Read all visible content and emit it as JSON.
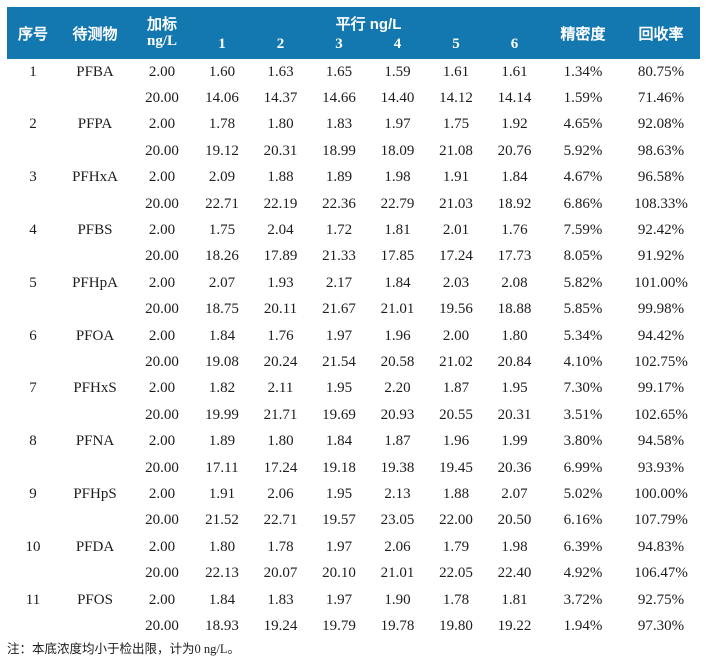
{
  "colors": {
    "header_bg": "#1377b0",
    "header_text": "#ffffff",
    "body_text": "#1c1c1c"
  },
  "table": {
    "headers": {
      "no": "序号",
      "analyte": "待测物",
      "spike_line1": "加标",
      "spike_line2": "ng/L",
      "parallel": "平行  ng/L",
      "replicates": [
        "1",
        "2",
        "3",
        "4",
        "5",
        "6"
      ],
      "precision": "精密度",
      "recovery": "回收率"
    },
    "rows": [
      {
        "no": "1",
        "analyte": "PFBA",
        "spike": "2.00",
        "values": [
          "1.60",
          "1.63",
          "1.65",
          "1.59",
          "1.61",
          "1.61"
        ],
        "precision": "1.34%",
        "recovery": "80.75%"
      },
      {
        "no": "",
        "analyte": "",
        "spike": "20.00",
        "values": [
          "14.06",
          "14.37",
          "14.66",
          "14.40",
          "14.12",
          "14.14"
        ],
        "precision": "1.59%",
        "recovery": "71.46%"
      },
      {
        "no": "2",
        "analyte": "PFPA",
        "spike": "2.00",
        "values": [
          "1.78",
          "1.80",
          "1.83",
          "1.97",
          "1.75",
          "1.92"
        ],
        "precision": "4.65%",
        "recovery": "92.08%"
      },
      {
        "no": "",
        "analyte": "",
        "spike": "20.00",
        "values": [
          "19.12",
          "20.31",
          "18.99",
          "18.09",
          "21.08",
          "20.76"
        ],
        "precision": "5.92%",
        "recovery": "98.63%"
      },
      {
        "no": "3",
        "analyte": "PFHxA",
        "spike": "2.00",
        "values": [
          "2.09",
          "1.88",
          "1.89",
          "1.98",
          "1.91",
          "1.84"
        ],
        "precision": "4.67%",
        "recovery": "96.58%"
      },
      {
        "no": "",
        "analyte": "",
        "spike": "20.00",
        "values": [
          "22.71",
          "22.19",
          "22.36",
          "22.79",
          "21.03",
          "18.92"
        ],
        "precision": "6.86%",
        "recovery": "108.33%"
      },
      {
        "no": "4",
        "analyte": "PFBS",
        "spike": "2.00",
        "values": [
          "1.75",
          "2.04",
          "1.72",
          "1.81",
          "2.01",
          "1.76"
        ],
        "precision": "7.59%",
        "recovery": "92.42%"
      },
      {
        "no": "",
        "analyte": "",
        "spike": "20.00",
        "values": [
          "18.26",
          "17.89",
          "21.33",
          "17.85",
          "17.24",
          "17.73"
        ],
        "precision": "8.05%",
        "recovery": "91.92%"
      },
      {
        "no": "5",
        "analyte": "PFHpA",
        "spike": "2.00",
        "values": [
          "2.07",
          "1.93",
          "2.17",
          "1.84",
          "2.03",
          "2.08"
        ],
        "precision": "5.82%",
        "recovery": "101.00%"
      },
      {
        "no": "",
        "analyte": "",
        "spike": "20.00",
        "values": [
          "18.75",
          "20.11",
          "21.67",
          "21.01",
          "19.56",
          "18.88"
        ],
        "precision": "5.85%",
        "recovery": "99.98%"
      },
      {
        "no": "6",
        "analyte": "PFOA",
        "spike": "2.00",
        "values": [
          "1.84",
          "1.76",
          "1.97",
          "1.96",
          "2.00",
          "1.80"
        ],
        "precision": "5.34%",
        "recovery": "94.42%"
      },
      {
        "no": "",
        "analyte": "",
        "spike": "20.00",
        "values": [
          "19.08",
          "20.24",
          "21.54",
          "20.58",
          "21.02",
          "20.84"
        ],
        "precision": "4.10%",
        "recovery": "102.75%"
      },
      {
        "no": "7",
        "analyte": "PFHxS",
        "spike": "2.00",
        "values": [
          "1.82",
          "2.11",
          "1.95",
          "2.20",
          "1.87",
          "1.95"
        ],
        "precision": "7.30%",
        "recovery": "99.17%"
      },
      {
        "no": "",
        "analyte": "",
        "spike": "20.00",
        "values": [
          "19.99",
          "21.71",
          "19.69",
          "20.93",
          "20.55",
          "20.31"
        ],
        "precision": "3.51%",
        "recovery": "102.65%"
      },
      {
        "no": "8",
        "analyte": "PFNA",
        "spike": "2.00",
        "values": [
          "1.89",
          "1.80",
          "1.84",
          "1.87",
          "1.96",
          "1.99"
        ],
        "precision": "3.80%",
        "recovery": "94.58%"
      },
      {
        "no": "",
        "analyte": "",
        "spike": "20.00",
        "values": [
          "17.11",
          "17.24",
          "19.18",
          "19.38",
          "19.45",
          "20.36"
        ],
        "precision": "6.99%",
        "recovery": "93.93%"
      },
      {
        "no": "9",
        "analyte": "PFHpS",
        "spike": "2.00",
        "values": [
          "1.91",
          "2.06",
          "1.95",
          "2.13",
          "1.88",
          "2.07"
        ],
        "precision": "5.02%",
        "recovery": "100.00%"
      },
      {
        "no": "",
        "analyte": "",
        "spike": "20.00",
        "values": [
          "21.52",
          "22.71",
          "19.57",
          "23.05",
          "22.00",
          "20.50"
        ],
        "precision": "6.16%",
        "recovery": "107.79%"
      },
      {
        "no": "10",
        "analyte": "PFDA",
        "spike": "2.00",
        "values": [
          "1.80",
          "1.78",
          "1.97",
          "2.06",
          "1.79",
          "1.98"
        ],
        "precision": "6.39%",
        "recovery": "94.83%"
      },
      {
        "no": "",
        "analyte": "",
        "spike": "20.00",
        "values": [
          "22.13",
          "20.07",
          "20.10",
          "21.01",
          "22.05",
          "22.40"
        ],
        "precision": "4.92%",
        "recovery": "106.47%"
      },
      {
        "no": "11",
        "analyte": "PFOS",
        "spike": "2.00",
        "values": [
          "1.84",
          "1.83",
          "1.97",
          "1.90",
          "1.78",
          "1.81"
        ],
        "precision": "3.72%",
        "recovery": "92.75%"
      },
      {
        "no": "",
        "analyte": "",
        "spike": "20.00",
        "values": [
          "18.93",
          "19.24",
          "19.79",
          "19.78",
          "19.80",
          "19.22"
        ],
        "precision": "1.94%",
        "recovery": "97.30%"
      }
    ],
    "note": "注：本底浓度均小于检出限，计为0 ng/L。"
  }
}
